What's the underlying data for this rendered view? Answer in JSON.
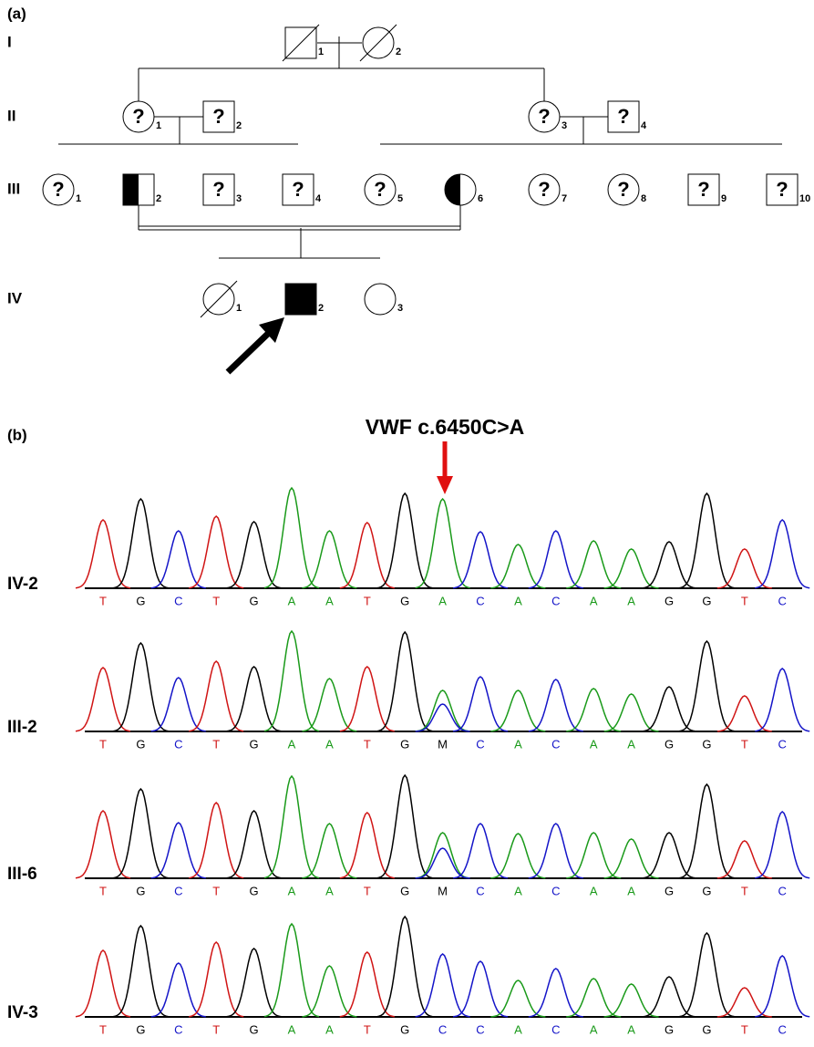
{
  "panel_a": {
    "label": "(a)",
    "generations": [
      {
        "label": "I",
        "individuals": [
          {
            "number": "1"
          },
          {
            "number": "2"
          }
        ]
      },
      {
        "label": "II",
        "individuals": [
          {
            "mark": "?",
            "number": "1"
          },
          {
            "mark": "?",
            "number": "2"
          },
          {
            "mark": "?",
            "number": "3"
          },
          {
            "mark": "?",
            "number": "4"
          }
        ]
      },
      {
        "label": "III",
        "individuals": [
          {
            "mark": "?",
            "number": "1"
          },
          {
            "number": "2"
          },
          {
            "mark": "?",
            "number": "3"
          },
          {
            "mark": "?",
            "number": "4"
          },
          {
            "mark": "?",
            "number": "5"
          },
          {
            "number": "6"
          },
          {
            "mark": "?",
            "number": "7"
          },
          {
            "mark": "?",
            "number": "8"
          },
          {
            "mark": "?",
            "number": "9"
          },
          {
            "mark": "?",
            "number": "10"
          }
        ]
      },
      {
        "label": "IV",
        "individuals": [
          {
            "number": "1"
          },
          {
            "number": "2"
          },
          {
            "number": "3"
          }
        ]
      }
    ]
  },
  "panel_b": {
    "label": "(b)",
    "title": "VWF c.6450C>A",
    "tracks": [
      {
        "label": "IV-2",
        "bases": [
          "T",
          "G",
          "C",
          "T",
          "G",
          "A",
          "A",
          "T",
          "G",
          "A",
          "C",
          "A",
          "C",
          "A",
          "A",
          "G",
          "G",
          "T",
          "C"
        ]
      },
      {
        "label": "III-2",
        "bases": [
          "T",
          "G",
          "C",
          "T",
          "G",
          "A",
          "A",
          "T",
          "G",
          "M",
          "C",
          "A",
          "C",
          "A",
          "A",
          "G",
          "G",
          "T",
          "C"
        ]
      },
      {
        "label": "III-6",
        "bases": [
          "T",
          "G",
          "C",
          "T",
          "G",
          "A",
          "A",
          "T",
          "G",
          "M",
          "C",
          "A",
          "C",
          "A",
          "A",
          "G",
          "G",
          "T",
          "C"
        ]
      },
      {
        "label": "IV-3",
        "bases": [
          "T",
          "G",
          "C",
          "T",
          "G",
          "A",
          "A",
          "T",
          "G",
          "C",
          "C",
          "A",
          "C",
          "A",
          "A",
          "G",
          "G",
          "T",
          "C"
        ]
      }
    ]
  }
}
